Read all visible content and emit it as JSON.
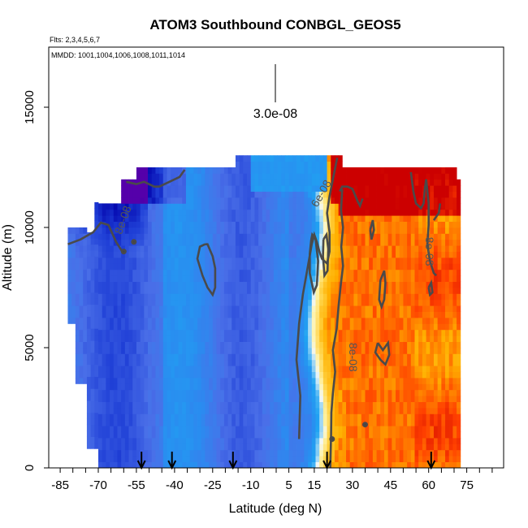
{
  "chart_data": {
    "type": "heatmap",
    "title": "ATOM3 Southbound CONBGL_GEOS5",
    "subtitle_flights": "Flts: 2,3,4,5,6,7",
    "subtitle_dates": "MMDD: 1001,1004,1006,1008,1011,1014",
    "xlabel": "Latitude (deg N)",
    "ylabel": "Altitude (m)",
    "xlim": [
      -85,
      85
    ],
    "ylim": [
      0,
      17500
    ],
    "x_ticks": [
      -85,
      -70,
      -55,
      -40,
      -25,
      -10,
      5,
      15,
      30,
      45,
      60,
      75
    ],
    "y_ticks": [
      0,
      5000,
      10000,
      15000
    ],
    "scale_bar_label": "3.0e-08",
    "colormap": [
      "#5500aa",
      "#0000aa",
      "#1f3fd6",
      "#4a6fe8",
      "#2a8cf0",
      "#1fa3f2",
      "#9dd6f5",
      "#f2f7f8",
      "#fff3a8",
      "#ffd040",
      "#ffb000",
      "#ff4000",
      "#cc0000"
    ],
    "contour_levels": [
      "6e-08",
      "8e-08"
    ],
    "contour_labels": [
      {
        "text": "8e-08",
        "lat": -60,
        "alt": 10300,
        "rotate": -70
      },
      {
        "text": "6e-08",
        "lat": 18,
        "alt": 11400,
        "rotate": -60
      },
      {
        "text": "8e-08",
        "lat": 60,
        "alt": 9000,
        "rotate": 90
      },
      {
        "text": "8e-08",
        "lat": 30,
        "alt": 4600,
        "rotate": 90
      }
    ],
    "profile_arrows_lat": [
      -53,
      -41,
      -17,
      20,
      61
    ]
  }
}
